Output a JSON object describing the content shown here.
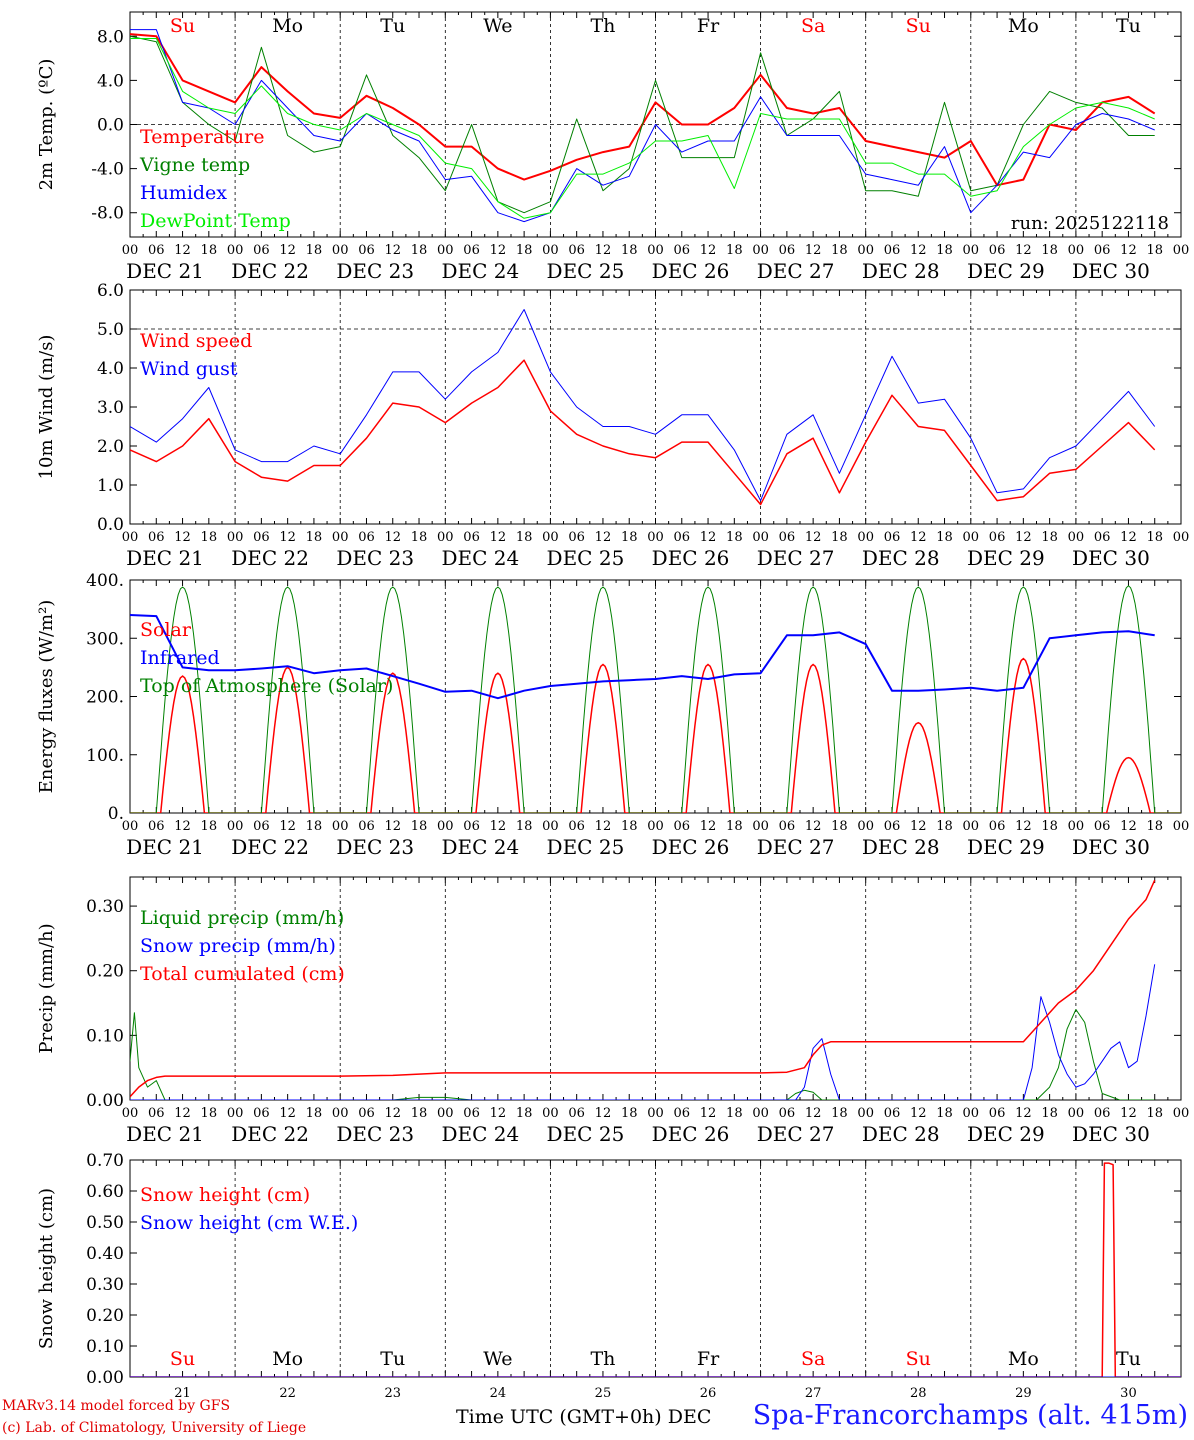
{
  "run_label": "run: 2025122118",
  "colors": {
    "temperature": "#ff0000",
    "vigne": "#008000",
    "humidex": "#0000ff",
    "dewpoint": "#00ee00",
    "grid": "#000000"
  },
  "axis": {
    "hour_ticks": [
      "00",
      "06",
      "12",
      "18"
    ],
    "day_labels": [
      "DEC 21",
      "DEC 22",
      "DEC 23",
      "DEC 24",
      "DEC 25",
      "DEC 26",
      "DEC 27",
      "DEC 28",
      "DEC 29",
      "DEC 30"
    ],
    "weekday_labels": [
      "Su",
      "Mo",
      "Tu",
      "We",
      "Th",
      "Fr",
      "Sa",
      "Su",
      "Mo",
      "Tu"
    ],
    "weekday_colors": [
      "#ff0000",
      "#000000",
      "#000000",
      "#000000",
      "#000000",
      "#000000",
      "#ff0000",
      "#ff0000",
      "#000000",
      "#000000"
    ],
    "date_numbers": [
      "21",
      "22",
      "23",
      "24",
      "25",
      "26",
      "27",
      "28",
      "29",
      "30"
    ],
    "xlabel": "Time UTC (GMT+0h) DEC"
  },
  "footer": {
    "model_line": "MARv3.14 model forced by GFS",
    "lab_line": "(c) Lab. of Climatology, University of Liege",
    "station": "Spa-Francorchamps (alt. 415m)"
  },
  "chart_data": [
    {
      "type": "line",
      "title": "2m Temperature",
      "ylabel": "2m Temp. (ºC)",
      "ylim": [
        -10.2,
        10.2
      ],
      "yticks": [
        -8,
        -4,
        0,
        4,
        8
      ],
      "ytick_labels": [
        "-8.0",
        "-4.0",
        "0.0",
        "4.0",
        "8.0"
      ],
      "x_unit": "hours since DEC 21 00 UTC",
      "series": [
        {
          "name": "Temperature",
          "color": "#ff0000",
          "width": 2,
          "x": [
            0,
            6,
            12,
            18,
            24,
            30,
            36,
            42,
            48,
            54,
            60,
            66,
            72,
            78,
            84,
            90,
            96,
            102,
            108,
            114,
            120,
            126,
            132,
            138,
            144,
            150,
            156,
            162,
            168,
            174,
            180,
            186,
            192,
            198,
            204,
            210,
            216,
            222,
            228,
            234
          ],
          "y": [
            8.2,
            8.0,
            4.0,
            3.0,
            2.0,
            5.2,
            3.0,
            1.0,
            0.6,
            2.6,
            1.5,
            0.0,
            -2.0,
            -2.0,
            -4.0,
            -5.0,
            -4.2,
            -3.2,
            -2.5,
            -2.0,
            2.0,
            0.0,
            0.0,
            1.5,
            4.5,
            1.5,
            1.0,
            1.5,
            -1.5,
            -2.0,
            -2.5,
            -3.0,
            -1.5,
            -5.5,
            -5.0,
            0.0,
            -0.5,
            2.0,
            2.5,
            1.0
          ]
        },
        {
          "name": "Vigne temp",
          "color": "#008000",
          "width": 1,
          "x": [
            0,
            6,
            12,
            18,
            24,
            30,
            36,
            42,
            48,
            54,
            60,
            66,
            72,
            78,
            84,
            90,
            96,
            102,
            108,
            114,
            120,
            126,
            132,
            138,
            144,
            150,
            156,
            162,
            168,
            174,
            180,
            186,
            192,
            198,
            204,
            210,
            216,
            222,
            228,
            234
          ],
          "y": [
            8.0,
            7.5,
            2.0,
            0.0,
            -1.5,
            7.0,
            -1.0,
            -2.5,
            -2.0,
            4.5,
            -1.0,
            -3.0,
            -6.0,
            0.0,
            -7.0,
            -8.0,
            -7.0,
            0.5,
            -6.0,
            -4.0,
            4.0,
            -3.0,
            -3.0,
            -3.0,
            6.5,
            -1.0,
            0.5,
            3.0,
            -6.0,
            -6.0,
            -6.5,
            2.0,
            -6.0,
            -5.5,
            0.0,
            3.0,
            2.0,
            1.5,
            -1.0,
            -1.0
          ]
        },
        {
          "name": "Humidex",
          "color": "#0000ff",
          "width": 1,
          "x": [
            0,
            6,
            12,
            18,
            24,
            30,
            36,
            42,
            48,
            54,
            60,
            66,
            72,
            78,
            84,
            90,
            96,
            102,
            108,
            114,
            120,
            126,
            132,
            138,
            144,
            150,
            156,
            162,
            168,
            174,
            180,
            186,
            192,
            198,
            204,
            210,
            216,
            222,
            228,
            234
          ],
          "y": [
            8.6,
            8.6,
            2.0,
            1.5,
            0.0,
            4.0,
            1.5,
            -1.0,
            -1.5,
            1.0,
            -0.5,
            -1.5,
            -5.0,
            -4.7,
            -8.0,
            -8.8,
            -8.0,
            -4.0,
            -5.5,
            -4.7,
            0.0,
            -2.5,
            -1.5,
            -1.5,
            2.5,
            -1.0,
            -1.0,
            -1.0,
            -4.5,
            -5.0,
            -5.5,
            -2.0,
            -8.0,
            -5.5,
            -2.5,
            -3.0,
            0.0,
            1.0,
            0.5,
            -0.5
          ]
        },
        {
          "name": "DewPoint Temp",
          "color": "#00ee00",
          "width": 1,
          "x": [
            0,
            6,
            12,
            18,
            24,
            30,
            36,
            42,
            48,
            54,
            60,
            66,
            72,
            78,
            84,
            90,
            96,
            102,
            108,
            114,
            120,
            126,
            132,
            138,
            144,
            150,
            156,
            162,
            168,
            174,
            180,
            186,
            192,
            198,
            204,
            210,
            216,
            222,
            228,
            234
          ],
          "y": [
            7.8,
            7.8,
            3.0,
            1.5,
            1.0,
            3.5,
            1.0,
            0.0,
            -0.5,
            1.0,
            0.0,
            -1.0,
            -3.5,
            -4.0,
            -7.0,
            -8.5,
            -8.0,
            -4.5,
            -4.5,
            -3.5,
            -1.5,
            -1.5,
            -1.0,
            -5.8,
            1.0,
            0.5,
            0.5,
            0.5,
            -3.5,
            -3.5,
            -4.5,
            -4.5,
            -6.5,
            -6.0,
            -2.0,
            0.0,
            1.5,
            2.0,
            1.5,
            0.5
          ]
        }
      ],
      "ref_line": 0,
      "show_run": true,
      "legend": {
        "x": 140,
        "y0": 137,
        "dy": 28,
        "font": 19
      }
    },
    {
      "type": "line",
      "title": "10m Wind",
      "ylabel": "10m Wind (m/s)",
      "ylim": [
        0,
        6
      ],
      "yticks": [
        0,
        1,
        2,
        3,
        4,
        5,
        6
      ],
      "ytick_labels": [
        "0.0",
        "1.0",
        "2.0",
        "3.0",
        "4.0",
        "5.0",
        "6.0"
      ],
      "x_unit": "hours since DEC 21 00 UTC",
      "series": [
        {
          "name": "Wind speed",
          "color": "#ff0000",
          "width": 1.5,
          "x": [
            0,
            6,
            12,
            18,
            24,
            30,
            36,
            42,
            48,
            54,
            60,
            66,
            72,
            78,
            84,
            90,
            96,
            102,
            108,
            114,
            120,
            126,
            132,
            138,
            144,
            150,
            156,
            162,
            168,
            174,
            180,
            186,
            192,
            198,
            204,
            210,
            216,
            222,
            228,
            234
          ],
          "y": [
            1.9,
            1.6,
            2.0,
            2.7,
            1.6,
            1.2,
            1.1,
            1.5,
            1.5,
            2.2,
            3.1,
            3.0,
            2.6,
            3.1,
            3.5,
            4.2,
            2.9,
            2.3,
            2.0,
            1.8,
            1.7,
            2.1,
            2.1,
            1.3,
            0.5,
            1.8,
            2.2,
            0.8,
            2.1,
            3.3,
            2.5,
            2.4,
            1.5,
            0.6,
            0.7,
            1.3,
            1.4,
            2.0,
            2.6,
            1.9
          ]
        },
        {
          "name": "Wind gust",
          "color": "#0000ff",
          "width": 1,
          "x": [
            0,
            6,
            12,
            18,
            24,
            30,
            36,
            42,
            48,
            54,
            60,
            66,
            72,
            78,
            84,
            90,
            96,
            102,
            108,
            114,
            120,
            126,
            132,
            138,
            144,
            150,
            156,
            162,
            168,
            174,
            180,
            186,
            192,
            198,
            204,
            210,
            216,
            222,
            228,
            234
          ],
          "y": [
            2.5,
            2.1,
            2.7,
            3.5,
            1.9,
            1.6,
            1.6,
            2.0,
            1.8,
            2.8,
            3.9,
            3.9,
            3.2,
            3.9,
            4.4,
            5.5,
            3.9,
            3.0,
            2.5,
            2.5,
            2.3,
            2.8,
            2.8,
            1.9,
            0.6,
            2.3,
            2.8,
            1.3,
            2.8,
            4.3,
            3.1,
            3.2,
            2.2,
            0.8,
            0.9,
            1.7,
            2.0,
            2.7,
            3.4,
            2.5
          ]
        }
      ],
      "ref_line": 5,
      "show_run": false,
      "legend": {
        "x": 140,
        "y0": 341,
        "dy": 28,
        "font": 19
      }
    },
    {
      "type": "line",
      "title": "Energy fluxes",
      "ylabel": "Energy fluxes (W/m²)",
      "ylim": [
        0,
        400
      ],
      "yticks": [
        0,
        100,
        200,
        300,
        400
      ],
      "ytick_labels": [
        "0.",
        "100.",
        "200.",
        "300.",
        "400."
      ],
      "x_unit": "hours since DEC 21 00 UTC",
      "diurnal": [
        {
          "name": "Solar",
          "color": "#ff0000",
          "width": 1.5,
          "peaks": [
            235,
            250,
            240,
            240,
            255,
            255,
            255,
            155,
            265,
            95
          ],
          "start": 7,
          "end": 17
        },
        {
          "name": "Top of Atmosphere (Solar)",
          "color": "#008000",
          "width": 1,
          "peaks": [
            388,
            388,
            388,
            388,
            388,
            388,
            388,
            388,
            388,
            390
          ],
          "start": 6,
          "end": 18
        }
      ],
      "series": [
        {
          "name": "Infrared",
          "color": "#0000ff",
          "width": 2,
          "x": [
            0,
            6,
            12,
            18,
            24,
            30,
            36,
            42,
            48,
            54,
            60,
            66,
            72,
            78,
            84,
            90,
            96,
            102,
            108,
            114,
            120,
            126,
            132,
            138,
            144,
            150,
            156,
            162,
            168,
            174,
            180,
            186,
            192,
            198,
            204,
            210,
            216,
            222,
            228,
            234
          ],
          "y": [
            340,
            338,
            250,
            245,
            245,
            248,
            252,
            240,
            245,
            248,
            235,
            222,
            208,
            210,
            197,
            210,
            218,
            222,
            226,
            228,
            230,
            235,
            230,
            238,
            240,
            305,
            305,
            310,
            290,
            210,
            210,
            212,
            215,
            210,
            215,
            300,
            305,
            310,
            312,
            305
          ]
        }
      ],
      "legend_order": [
        "Solar",
        "Infrared",
        "Top of Atmosphere (Solar)"
      ],
      "legend_colors": [
        "#ff0000",
        "#0000ff",
        "#008000"
      ],
      "ref_line": null,
      "show_run": false,
      "legend": {
        "x": 140,
        "y0": 630,
        "dy": 28,
        "font": 19
      }
    },
    {
      "type": "line",
      "title": "Precip",
      "ylabel": "Precip (mm/h)",
      "ylim": [
        0,
        0.345
      ],
      "yticks": [
        0,
        0.1,
        0.2,
        0.3
      ],
      "ytick_labels": [
        "0.00",
        "0.10",
        "0.20",
        "0.30"
      ],
      "x_unit": "hours since DEC 21 00 UTC",
      "series": [
        {
          "name": "Liquid precip (mm/h)",
          "color": "#008000",
          "width": 1,
          "x": [
            0,
            1,
            2,
            4,
            6,
            8,
            10,
            12,
            60,
            66,
            72,
            78,
            150,
            152,
            154,
            156,
            158,
            204,
            207,
            210,
            212,
            214,
            216,
            218,
            220,
            222,
            226,
            228,
            234
          ],
          "y": [
            0.06,
            0.135,
            0.05,
            0.02,
            0.03,
            0.0,
            0.0,
            0.0,
            0.0,
            0.004,
            0.004,
            0.0,
            0.0,
            0.01,
            0.015,
            0.012,
            0.0,
            0.0,
            0.0,
            0.02,
            0.05,
            0.11,
            0.14,
            0.12,
            0.06,
            0.01,
            0.0,
            0.0,
            0.0
          ]
        },
        {
          "name": "Snow precip (mm/h)",
          "color": "#0000ff",
          "width": 1,
          "x": [
            0,
            150,
            152,
            154,
            156,
            158,
            160,
            162,
            204,
            206,
            208,
            210,
            212,
            214,
            216,
            218,
            220,
            222,
            224,
            226,
            228,
            230,
            232,
            234
          ],
          "y": [
            0,
            0,
            0.0,
            0.02,
            0.08,
            0.095,
            0.04,
            0.0,
            0.0,
            0.05,
            0.16,
            0.12,
            0.07,
            0.04,
            0.02,
            0.025,
            0.04,
            0.06,
            0.08,
            0.09,
            0.05,
            0.06,
            0.13,
            0.21
          ]
        },
        {
          "name": "Total cumulated (cm)",
          "color": "#ff0000",
          "width": 1.5,
          "x": [
            0,
            2,
            4,
            6,
            8,
            10,
            30,
            48,
            60,
            66,
            72,
            96,
            120,
            144,
            150,
            154,
            156,
            158,
            160,
            204,
            208,
            212,
            216,
            220,
            224,
            228,
            232,
            234
          ],
          "y": [
            0.005,
            0.02,
            0.03,
            0.035,
            0.037,
            0.037,
            0.037,
            0.037,
            0.038,
            0.04,
            0.042,
            0.042,
            0.042,
            0.042,
            0.043,
            0.05,
            0.07,
            0.085,
            0.09,
            0.09,
            0.12,
            0.15,
            0.17,
            0.2,
            0.24,
            0.28,
            0.31,
            0.34
          ]
        }
      ],
      "ref_line": null,
      "show_run": false,
      "legend": {
        "x": 140,
        "y0": 918,
        "dy": 28,
        "font": 19
      }
    },
    {
      "type": "line",
      "title": "Snow height",
      "ylabel": "Snow height (cm)",
      "ylim": [
        0,
        0.7
      ],
      "yticks": [
        0,
        0.1,
        0.2,
        0.3,
        0.4,
        0.5,
        0.6,
        0.7
      ],
      "ytick_labels": [
        "0.00",
        "0.10",
        "0.20",
        "0.30",
        "0.40",
        "0.50",
        "0.60",
        "0.70"
      ],
      "x_unit": "hours since DEC 21 00 UTC",
      "series": [
        {
          "name": "Snow height (cm)",
          "color": "#ff0000",
          "width": 1.5,
          "x": [
            0,
            222,
            222.5,
            223.5,
            224.5,
            225,
            240
          ],
          "y": [
            0,
            0,
            0.69,
            0.69,
            0.685,
            0,
            0
          ]
        },
        {
          "name": "Snow height (cm W.E.)",
          "color": "#0000ff",
          "width": 1,
          "x": [
            0,
            240
          ],
          "y": [
            0,
            0
          ]
        }
      ],
      "ref_line": null,
      "show_run": false,
      "legend": {
        "x": 140,
        "y0": 1195,
        "dy": 28,
        "font": 19
      }
    }
  ]
}
